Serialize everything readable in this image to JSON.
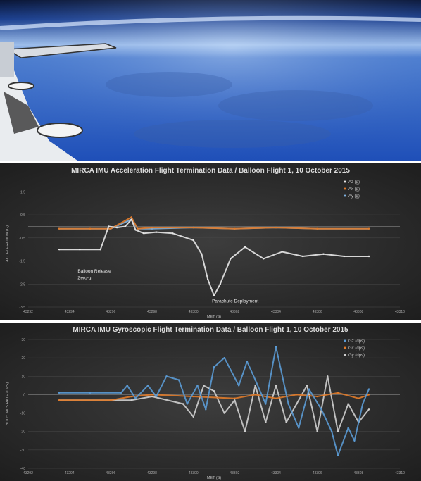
{
  "photo": {
    "icon": "stratosphere-horizon-photo"
  },
  "charts": [
    {
      "id": "accel",
      "type": "line",
      "title": "MIRCA IMU Acceleration Flight Termination Data / Balloon Flight 1, 10 October 2015",
      "xlabel": "MET (S)",
      "ylabel": "ACCELERATION (G)",
      "xlim": [
        43292,
        43310
      ],
      "ylim": [
        -3.5,
        2
      ],
      "x_ticks": [
        "43292",
        "43294",
        "43296",
        "43298",
        "43300",
        "43302",
        "43304",
        "43306",
        "43308",
        "43310"
      ],
      "y_ticks": [
        "-3.5",
        "-2.5",
        "-1.5",
        "-0.5",
        "0.5",
        "1.5"
      ],
      "y_tick_values": [
        -3.5,
        -2.5,
        -1.5,
        -0.5,
        0.5,
        1.5
      ],
      "legend": [
        "Az (g)",
        "Ax (g)",
        "Ay (g)"
      ],
      "legend_colors": [
        "#e8e8e8",
        "#e07b2a",
        "#7fb2e0"
      ],
      "annotations": [
        {
          "text": "Balloon Release",
          "x": 43294.4,
          "y": -2.0
        },
        {
          "text": "Zero-g",
          "x": 43294.4,
          "y": -2.3
        },
        {
          "text": "Parachute Deployment",
          "x": 43300.9,
          "y": -3.3
        }
      ],
      "series": [
        {
          "name": "Az (g)",
          "x": [
            43293.5,
            43294.5,
            43295.5,
            43295.9,
            43296.3,
            43296.7,
            43297.0,
            43297.2,
            43297.6,
            43298.2,
            43299.0,
            43300.0,
            43300.4,
            43300.7,
            43301.0,
            43301.3,
            43301.8,
            43302.5,
            43303.4,
            43304.3,
            43305.3,
            43306.3,
            43307.3,
            43308.5
          ],
          "y": [
            -1.0,
            -1.0,
            -1.0,
            0.0,
            -0.05,
            0.0,
            0.3,
            -0.15,
            -0.3,
            -0.25,
            -0.3,
            -0.6,
            -1.2,
            -2.3,
            -3.0,
            -2.5,
            -1.4,
            -0.9,
            -1.4,
            -1.1,
            -1.3,
            -1.2,
            -1.3,
            -1.3
          ]
        },
        {
          "name": "Ax (g)",
          "x": [
            43293.5,
            43295.0,
            43296.0,
            43297.0,
            43297.3,
            43298.0,
            43300.0,
            43302.0,
            43304.0,
            43306.0,
            43308.5
          ],
          "y": [
            -0.1,
            -0.1,
            -0.1,
            0.4,
            -0.1,
            -0.05,
            -0.05,
            -0.1,
            -0.05,
            -0.1,
            -0.1
          ]
        },
        {
          "name": "Ay (g)",
          "x": [
            43293.5,
            43295.0,
            43296.0,
            43297.0,
            43297.3,
            43298.0,
            43300.0,
            43302.0,
            43304.0,
            43306.0,
            43308.5
          ],
          "y": [
            -0.1,
            -0.1,
            -0.1,
            0.3,
            -0.1,
            -0.1,
            -0.05,
            -0.1,
            -0.05,
            -0.1,
            -0.1
          ]
        }
      ]
    },
    {
      "id": "gyro",
      "type": "line",
      "title": "MIRCA IMU Gyroscopic Flight Termination Data / Balloon Flight 1, 10 October 2015",
      "xlabel": "MET (S)",
      "ylabel": "BODY AXIS RATE (DPS)",
      "xlim": [
        43292,
        43310
      ],
      "ylim": [
        -40,
        30
      ],
      "x_ticks": [
        "43292",
        "43294",
        "43296",
        "43298",
        "43300",
        "43302",
        "43304",
        "43306",
        "43308",
        "43310"
      ],
      "y_ticks": [
        "-40",
        "-30",
        "-20",
        "-10",
        "0",
        "10",
        "20",
        "30"
      ],
      "y_tick_values": [
        -40,
        -30,
        -20,
        -10,
        0,
        10,
        20,
        30
      ],
      "legend": [
        "Gz (dps)",
        "Gx (dps)",
        "Gy (dps)"
      ],
      "legend_colors": [
        "#5b9bd5",
        "#e07b2a",
        "#cfcfcf"
      ],
      "annotations": [],
      "series": [
        {
          "name": "Gz (dps)",
          "x": [
            43293.5,
            43295.0,
            43296.5,
            43296.8,
            43297.2,
            43297.8,
            43298.2,
            43298.7,
            43299.3,
            43299.7,
            43300.2,
            43300.6,
            43301.0,
            43301.5,
            43302.2,
            43302.6,
            43303.0,
            43303.5,
            43304.0,
            43304.6,
            43305.1,
            43305.6,
            43306.2,
            43306.7,
            43307.0,
            43307.5,
            43307.8,
            43308.2,
            43308.5
          ],
          "y": [
            1,
            1,
            1,
            5,
            -2,
            5,
            -1,
            10,
            8,
            -5,
            5,
            -8,
            15,
            20,
            5,
            18,
            8,
            -5,
            26,
            -5,
            -18,
            3,
            -8,
            -20,
            -33,
            -18,
            -25,
            -5,
            3
          ]
        },
        {
          "name": "Gx (dps)",
          "x": [
            43293.5,
            43296.0,
            43297.0,
            43298.0,
            43300.0,
            43302.0,
            43303.0,
            43304.0,
            43305.0,
            43306.0,
            43307.0,
            43308.0,
            43308.5
          ],
          "y": [
            -3,
            -3,
            -1,
            0,
            -1,
            -2,
            0,
            -2,
            0,
            -1,
            1,
            -2,
            0
          ]
        },
        {
          "name": "Gy (dps)",
          "x": [
            43293.5,
            43296.0,
            43297.0,
            43298.0,
            43299.5,
            43300.0,
            43300.5,
            43301.0,
            43301.5,
            43302.0,
            43302.5,
            43303.0,
            43303.5,
            43304.0,
            43304.5,
            43305.0,
            43305.5,
            43306.0,
            43306.5,
            43307.0,
            43307.5,
            43308.0,
            43308.5
          ],
          "y": [
            -3,
            -3,
            -3,
            -1,
            -5,
            -12,
            5,
            2,
            -10,
            -3,
            -20,
            5,
            -15,
            5,
            -15,
            -5,
            5,
            -20,
            10,
            -20,
            -5,
            -15,
            -8
          ]
        }
      ]
    }
  ]
}
